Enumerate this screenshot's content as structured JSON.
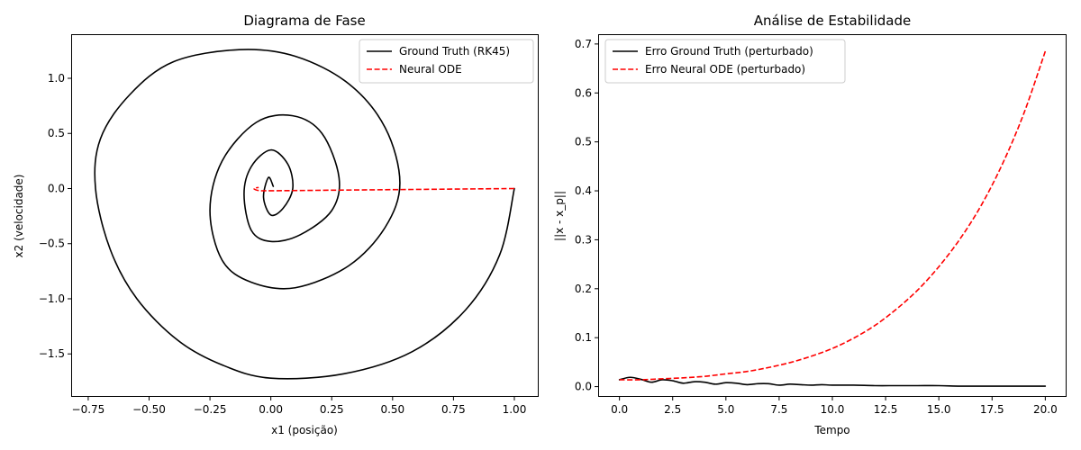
{
  "chart_data": [
    {
      "type": "line",
      "title": "Diagrama de Fase",
      "xlabel": "x1 (posição)",
      "ylabel": "x2 (velocidade)",
      "xlim": [
        -0.82,
        1.1
      ],
      "ylim": [
        -1.89,
        1.4
      ],
      "xticks": [
        -0.75,
        -0.5,
        -0.25,
        0.0,
        0.25,
        0.5,
        0.75,
        1.0
      ],
      "xtick_labels": [
        "−0.75",
        "−0.50",
        "−0.25",
        "0.00",
        "0.25",
        "0.50",
        "0.75",
        "1.00"
      ],
      "yticks": [
        -1.5,
        -1.0,
        -0.5,
        0.0,
        0.5,
        1.0
      ],
      "ytick_labels": [
        "−1.5",
        "−1.0",
        "−0.5",
        "0.0",
        "0.5",
        "1.0"
      ],
      "legend_position": "top-right",
      "grid": false,
      "series": [
        {
          "name": "Ground Truth (RK45)",
          "color": "#000000",
          "style": "solid",
          "model": "damped spiral from (1.00, 0.00) toward (0, 0)",
          "x": [
            1.0,
            0.94,
            0.8,
            0.58,
            0.3,
            0.0,
            -0.2,
            -0.38,
            -0.55,
            -0.66,
            -0.72,
            -0.7,
            -0.58,
            -0.4,
            -0.13,
            0.1,
            0.32,
            0.47,
            0.53,
            0.47,
            0.32,
            0.1,
            -0.08,
            -0.2,
            -0.25,
            -0.2,
            -0.06,
            0.09,
            0.21,
            0.28,
            0.25,
            0.12,
            0.0,
            -0.08,
            -0.11,
            -0.08,
            0.0,
            0.07,
            0.09,
            0.05,
            0.0,
            -0.03,
            -0.01,
            0.01
          ],
          "y": [
            0.0,
            -0.6,
            -1.1,
            -1.48,
            -1.68,
            -1.72,
            -1.6,
            -1.38,
            -1.0,
            -0.55,
            0.0,
            0.45,
            0.85,
            1.15,
            1.26,
            1.2,
            0.95,
            0.55,
            0.05,
            -0.35,
            -0.7,
            -0.9,
            -0.85,
            -0.65,
            -0.2,
            0.25,
            0.6,
            0.66,
            0.5,
            0.1,
            -0.2,
            -0.42,
            -0.48,
            -0.38,
            -0.05,
            0.2,
            0.35,
            0.22,
            0.0,
            -0.18,
            -0.24,
            -0.08,
            0.1,
            0.02
          ]
        },
        {
          "name": "Neural ODE",
          "color": "#ff0000",
          "style": "dashed",
          "x": [
            1.0,
            0.75,
            0.5,
            0.25,
            0.0,
            -0.05,
            -0.07,
            -0.05
          ],
          "y": [
            0.0,
            -0.005,
            -0.01,
            -0.015,
            -0.02,
            -0.018,
            0.0,
            0.01
          ]
        }
      ]
    },
    {
      "type": "line",
      "title": "Análise de Estabilidade",
      "xlabel": "Tempo",
      "ylabel": "||x - x_p||",
      "xlim": [
        -1.0,
        21.0
      ],
      "ylim": [
        -0.021,
        0.72
      ],
      "xticks": [
        0,
        2.5,
        5,
        7.5,
        10,
        12.5,
        15,
        17.5,
        20
      ],
      "xtick_labels": [
        "0.0",
        "2.5",
        "5.0",
        "7.5",
        "10.0",
        "12.5",
        "15.0",
        "17.5",
        "20.0"
      ],
      "yticks": [
        0.0,
        0.1,
        0.2,
        0.3,
        0.4,
        0.5,
        0.6,
        0.7
      ],
      "ytick_labels": [
        "0.0",
        "0.1",
        "0.2",
        "0.3",
        "0.4",
        "0.5",
        "0.6",
        "0.7"
      ],
      "legend_position": "top-left",
      "grid": false,
      "series": [
        {
          "name": "Erro Ground Truth (perturbado)",
          "color": "#000000",
          "style": "solid",
          "x": [
            0,
            0.5,
            1,
            1.5,
            2,
            2.5,
            3,
            3.5,
            4,
            4.5,
            5,
            5.5,
            6,
            6.5,
            7,
            7.5,
            8,
            8.5,
            9,
            9.5,
            10,
            11,
            12,
            13,
            14,
            15,
            16,
            17,
            18,
            19,
            20
          ],
          "y": [
            0.014,
            0.019,
            0.015,
            0.009,
            0.014,
            0.012,
            0.007,
            0.01,
            0.009,
            0.005,
            0.008,
            0.007,
            0.004,
            0.006,
            0.006,
            0.003,
            0.005,
            0.004,
            0.003,
            0.004,
            0.003,
            0.003,
            0.002,
            0.002,
            0.002,
            0.002,
            0.001,
            0.001,
            0.001,
            0.001,
            0.001
          ]
        },
        {
          "name": "Erro Neural ODE (perturbado)",
          "color": "#ff0000",
          "style": "dashed",
          "x": [
            0,
            1,
            2,
            3,
            4,
            5,
            6,
            7,
            8,
            9,
            10,
            11,
            12,
            13,
            14,
            15,
            16,
            17,
            18,
            19,
            20
          ],
          "y": [
            0.014,
            0.014,
            0.016,
            0.018,
            0.021,
            0.026,
            0.031,
            0.039,
            0.049,
            0.062,
            0.078,
            0.099,
            0.125,
            0.158,
            0.197,
            0.245,
            0.302,
            0.371,
            0.456,
            0.559,
            0.685
          ]
        }
      ]
    }
  ]
}
